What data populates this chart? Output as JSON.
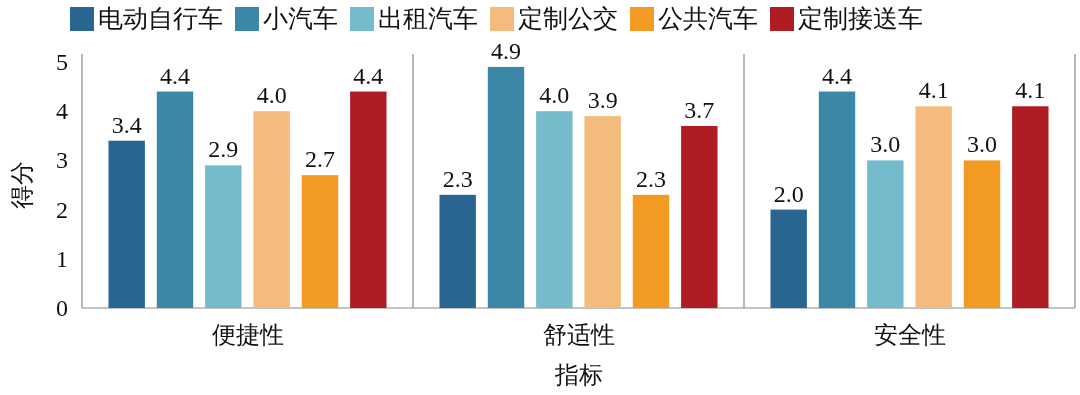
{
  "chart_data": {
    "type": "bar",
    "xlabel": "指标",
    "ylabel": "得分",
    "categories": [
      "便捷性",
      "舒适性",
      "安全性"
    ],
    "series": [
      {
        "name": "电动自行车",
        "color": "#2a6592",
        "values": [
          3.4,
          2.3,
          2.0
        ],
        "value_labels": [
          "3.4",
          "2.3",
          "2.0"
        ]
      },
      {
        "name": "小汽车",
        "color": "#3a87a6",
        "values": [
          4.4,
          4.9,
          4.4
        ],
        "value_labels": [
          "4.4",
          "4.9",
          "4.4"
        ]
      },
      {
        "name": "出租汽车",
        "color": "#74bccc",
        "values": [
          2.9,
          4.0,
          3.0
        ],
        "value_labels": [
          "2.9",
          "4.0",
          "3.0"
        ]
      },
      {
        "name": "定制公交",
        "color": "#f4bc7c",
        "values": [
          4.0,
          3.9,
          4.1
        ],
        "value_labels": [
          "4.0",
          "3.9",
          "4.1"
        ]
      },
      {
        "name": "公共汽车",
        "color": "#f29a22",
        "values": [
          2.7,
          2.3,
          3.0
        ],
        "value_labels": [
          "2.7",
          "2.3",
          "3.0"
        ]
      },
      {
        "name": "定制接送车",
        "color": "#b01c24",
        "values": [
          4.4,
          3.7,
          4.1
        ],
        "value_labels": [
          "4.4",
          "3.7",
          "4.1"
        ]
      }
    ],
    "ylim": [
      0,
      5
    ],
    "yticks": [
      0,
      1,
      2,
      3,
      4,
      5
    ],
    "legend": "top"
  }
}
